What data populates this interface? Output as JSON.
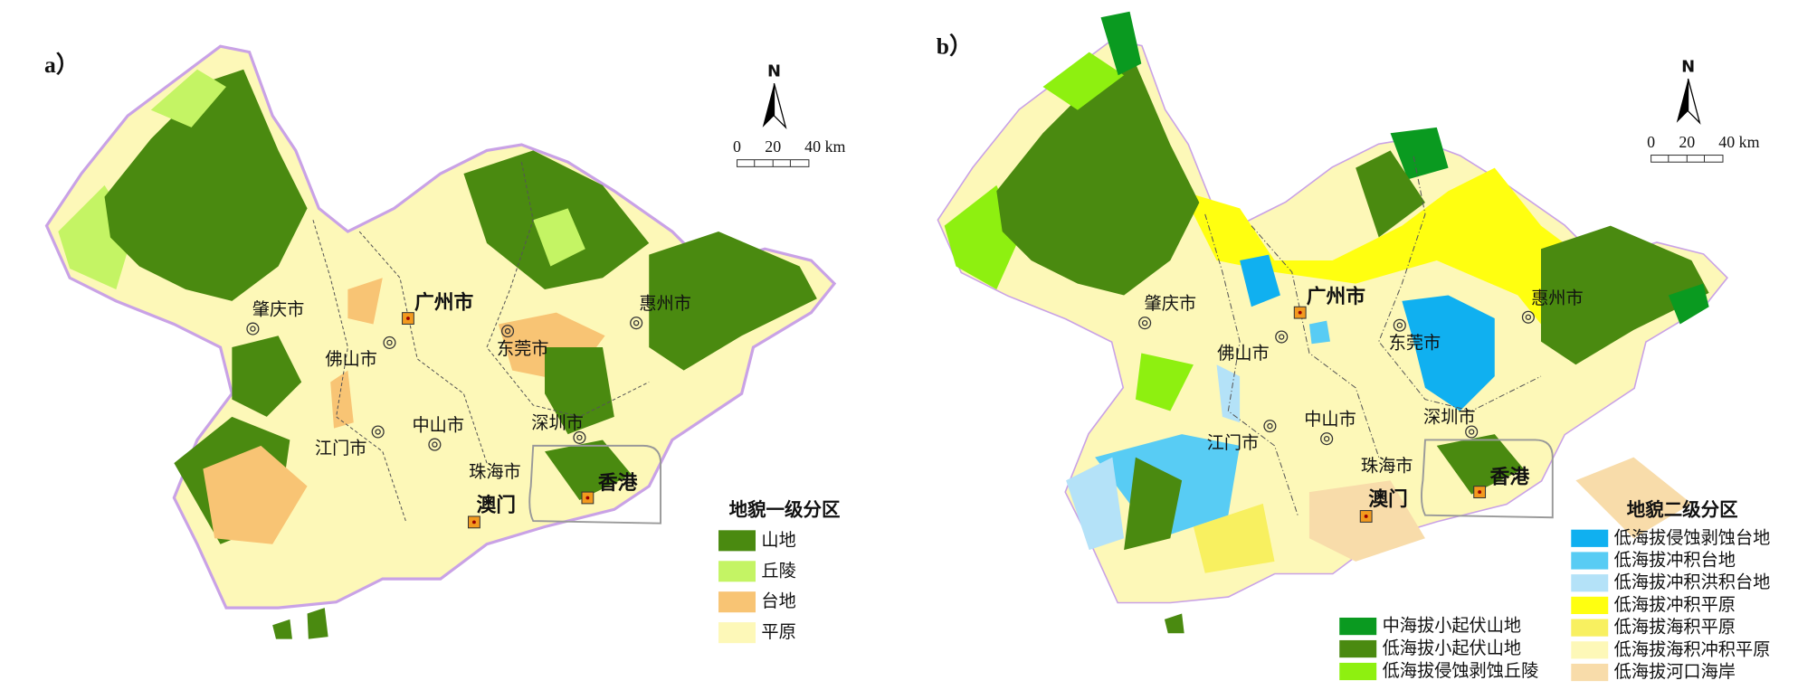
{
  "panels": [
    {
      "label": "a）",
      "north": "N",
      "scale": [
        "0",
        "20",
        "40 km"
      ],
      "cities": [
        "肇庆市",
        "广州市",
        "佛山市",
        "东莞市",
        "惠州市",
        "江门市",
        "中山市",
        "深圳市",
        "珠海市",
        "澳门",
        "香港"
      ],
      "legend": {
        "title": "地貌一级分区",
        "items": [
          {
            "label": "山地",
            "color": "#4a8a10"
          },
          {
            "label": "丘陵",
            "color": "#c4f464"
          },
          {
            "label": "台地",
            "color": "#f8c474"
          },
          {
            "label": "平原",
            "color": "#fdf8b8"
          }
        ]
      }
    },
    {
      "label": "b）",
      "north": "N",
      "scale": [
        "0",
        "20",
        "40 km"
      ],
      "cities": [
        "肇庆市",
        "广州市",
        "佛山市",
        "东莞市",
        "惠州市",
        "江门市",
        "中山市",
        "深圳市",
        "珠海市",
        "澳门",
        "香港"
      ],
      "legend": {
        "title": "地貌二级分区",
        "items": [
          {
            "label": "低海拔侵蚀剥蚀台地",
            "color": "#10b0f0"
          },
          {
            "label": "低海拔冲积台地",
            "color": "#58ccf4"
          },
          {
            "label": "低海拔冲积洪积台地",
            "color": "#b4e2f8"
          },
          {
            "label": "低海拔冲积平原",
            "color": "#ffff10"
          },
          {
            "label": "低海拔海积平原",
            "color": "#f8f060"
          },
          {
            "label": "低海拔海积冲积平原",
            "color": "#fdf8b8"
          },
          {
            "label": "低海拔河口海岸",
            "color": "#f8dcaa"
          },
          {
            "label": "中海拔小起伏山地",
            "color": "#0a9a20"
          },
          {
            "label": "低海拔小起伏山地",
            "color": "#4a8a10"
          },
          {
            "label": "低海拔侵蚀剥蚀丘陵",
            "color": "#8ef010"
          }
        ]
      }
    }
  ]
}
